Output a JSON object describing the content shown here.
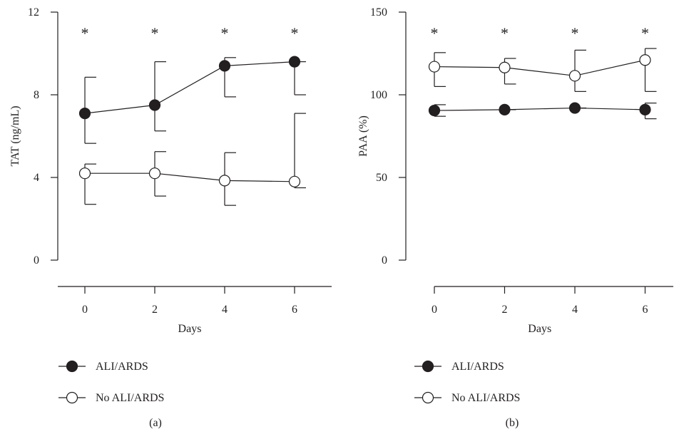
{
  "chart_data": [
    {
      "type": "line",
      "panel_label": "(a)",
      "xlabel": "Days",
      "ylabel": "TAT (ng/mL)",
      "x": [
        0,
        2,
        4,
        6
      ],
      "x_ticks": [
        "0",
        "2",
        "4",
        "6"
      ],
      "xlim": [
        -0.8,
        7
      ],
      "ylim": [
        0,
        12
      ],
      "y_ticks": [
        "0",
        "4",
        "8",
        "12"
      ],
      "y_tick_values": [
        0,
        4,
        8,
        12
      ],
      "significance_marker": "*",
      "grid": false,
      "legend_position": "bottom-left",
      "series": [
        {
          "name": "ALI/ARDS",
          "marker": "filled-circle",
          "values": [
            7.1,
            7.5,
            9.4,
            9.6
          ],
          "error_upper": [
            8.85,
            9.6,
            9.8,
            9.6
          ],
          "error_lower": [
            5.65,
            6.25,
            7.9,
            8.0
          ]
        },
        {
          "name": "No ALI/ARDS",
          "marker": "open-circle",
          "values": [
            4.2,
            4.2,
            3.85,
            3.8
          ],
          "error_upper": [
            4.65,
            5.25,
            5.2,
            7.1
          ],
          "error_lower": [
            2.7,
            3.1,
            2.65,
            3.5
          ]
        }
      ]
    },
    {
      "type": "line",
      "panel_label": "(b)",
      "xlabel": "Days",
      "ylabel": "PAA (%)",
      "x": [
        0,
        2,
        4,
        6
      ],
      "x_ticks": [
        "0",
        "2",
        "4",
        "6"
      ],
      "xlim": [
        -0.8,
        7
      ],
      "ylim": [
        0,
        150
      ],
      "y_ticks": [
        "0",
        "50",
        "100",
        "150"
      ],
      "y_tick_values": [
        0,
        50,
        100,
        150
      ],
      "significance_marker": "*",
      "grid": false,
      "legend_position": "bottom-left",
      "series": [
        {
          "name": "ALI/ARDS",
          "marker": "filled-circle",
          "values": [
            90.5,
            91,
            92,
            91
          ],
          "error_upper": [
            94,
            91,
            92,
            95
          ],
          "error_lower": [
            87,
            91,
            92,
            85.5
          ]
        },
        {
          "name": "No ALI/ARDS",
          "marker": "open-circle",
          "values": [
            117,
            116.5,
            111.5,
            121
          ],
          "error_upper": [
            125.5,
            122,
            127,
            128
          ],
          "error_lower": [
            105,
            106.5,
            102,
            102
          ]
        }
      ]
    }
  ]
}
